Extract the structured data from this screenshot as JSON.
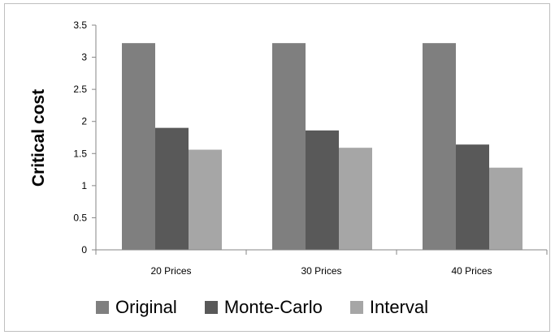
{
  "chart_data": {
    "type": "bar",
    "title": "",
    "xlabel": "",
    "ylabel": "Critical cost",
    "categories": [
      "20 Prices",
      "30 Prices",
      "40 Prices"
    ],
    "series": [
      {
        "name": "Original",
        "values": [
          3.22,
          3.22,
          3.22
        ],
        "color": "#7f7f7f"
      },
      {
        "name": "Monte-Carlo",
        "values": [
          1.9,
          1.86,
          1.64
        ],
        "color": "#595959"
      },
      {
        "name": "Interval",
        "values": [
          1.56,
          1.59,
          1.28
        ],
        "color": "#a6a6a6"
      }
    ],
    "ylim": [
      0,
      3.5
    ],
    "yticks": [
      "0",
      "0.5",
      "1",
      "1.5",
      "2",
      "2.5",
      "3",
      "3.5"
    ],
    "grid": false,
    "legend_position": "bottom"
  }
}
